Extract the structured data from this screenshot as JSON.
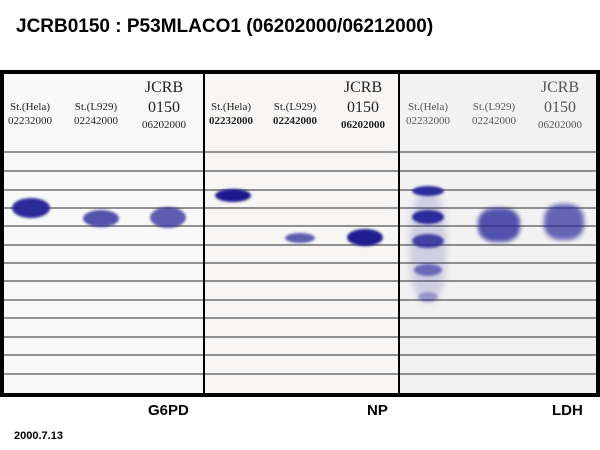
{
  "title": "JCRB0150 : P53MLACO1 (06202000/06212000)",
  "panels": [
    {
      "enzyme": "G6PD",
      "lanes": [
        {
          "name": "St.(Hela)",
          "lot": "02232000"
        },
        {
          "name": "St.(L929)",
          "lot": "02242000"
        },
        {
          "name_line1": "JCRB",
          "name_line2": "0150",
          "lot": "06202000"
        }
      ]
    },
    {
      "enzyme": "NP",
      "lanes": [
        {
          "name": "St.(Hela)",
          "lot": "02232000"
        },
        {
          "name": "St.(L929)",
          "lot": "02242000"
        },
        {
          "name_line1": "JCRB",
          "name_line2": "0150",
          "lot": "06202000"
        }
      ]
    },
    {
      "enzyme": "LDH",
      "lanes": [
        {
          "name": "St.(Hela)",
          "lot": "02232000"
        },
        {
          "name": "St.(L929)",
          "lot": "02242000"
        },
        {
          "name_line1": "JCRB",
          "name_line2": "0150",
          "lot": "06202000"
        }
      ]
    }
  ],
  "date": "2000.7.13",
  "colors": {
    "band": "#2b2a9a",
    "frame": "#000000"
  }
}
